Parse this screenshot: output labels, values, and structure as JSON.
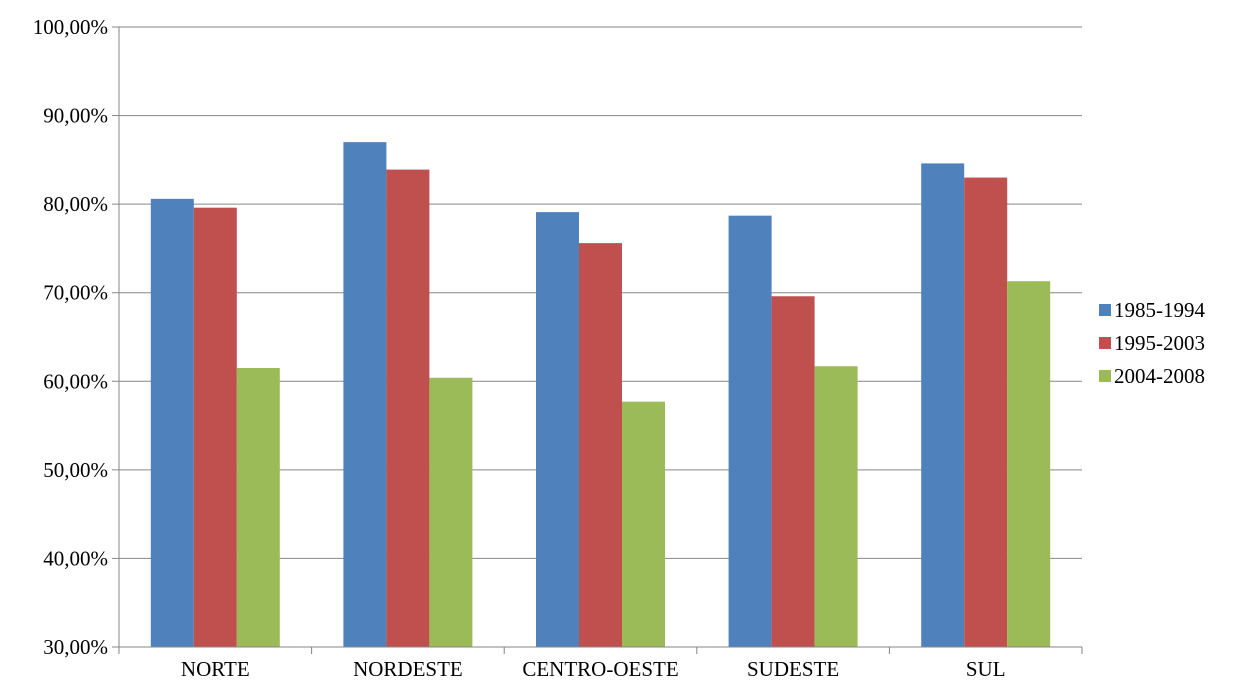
{
  "chart_data": {
    "type": "bar",
    "categories": [
      "NORTE",
      "NORDESTE",
      "CENTRO-OESTE",
      "SUDESTE",
      "SUL"
    ],
    "series": [
      {
        "name": "1985-1994",
        "color": "#4F81BD",
        "values": [
          80.6,
          87.0,
          79.1,
          78.7,
          84.6
        ]
      },
      {
        "name": "1995-2003",
        "color": "#C0504D",
        "values": [
          79.6,
          83.9,
          75.6,
          69.6,
          83.0
        ]
      },
      {
        "name": "2004-2008",
        "color": "#9BBB59",
        "values": [
          61.5,
          60.4,
          57.7,
          61.7,
          71.3
        ]
      }
    ],
    "yticks": [
      30,
      40,
      50,
      60,
      70,
      80,
      90,
      100
    ],
    "ytick_labels": [
      "30,00%",
      "40,00%",
      "50,00%",
      "60,00%",
      "70,00%",
      "80,00%",
      "90,00%",
      "100,00%"
    ],
    "ylim": [
      30,
      100
    ],
    "grid": true,
    "legend_position": "right"
  }
}
